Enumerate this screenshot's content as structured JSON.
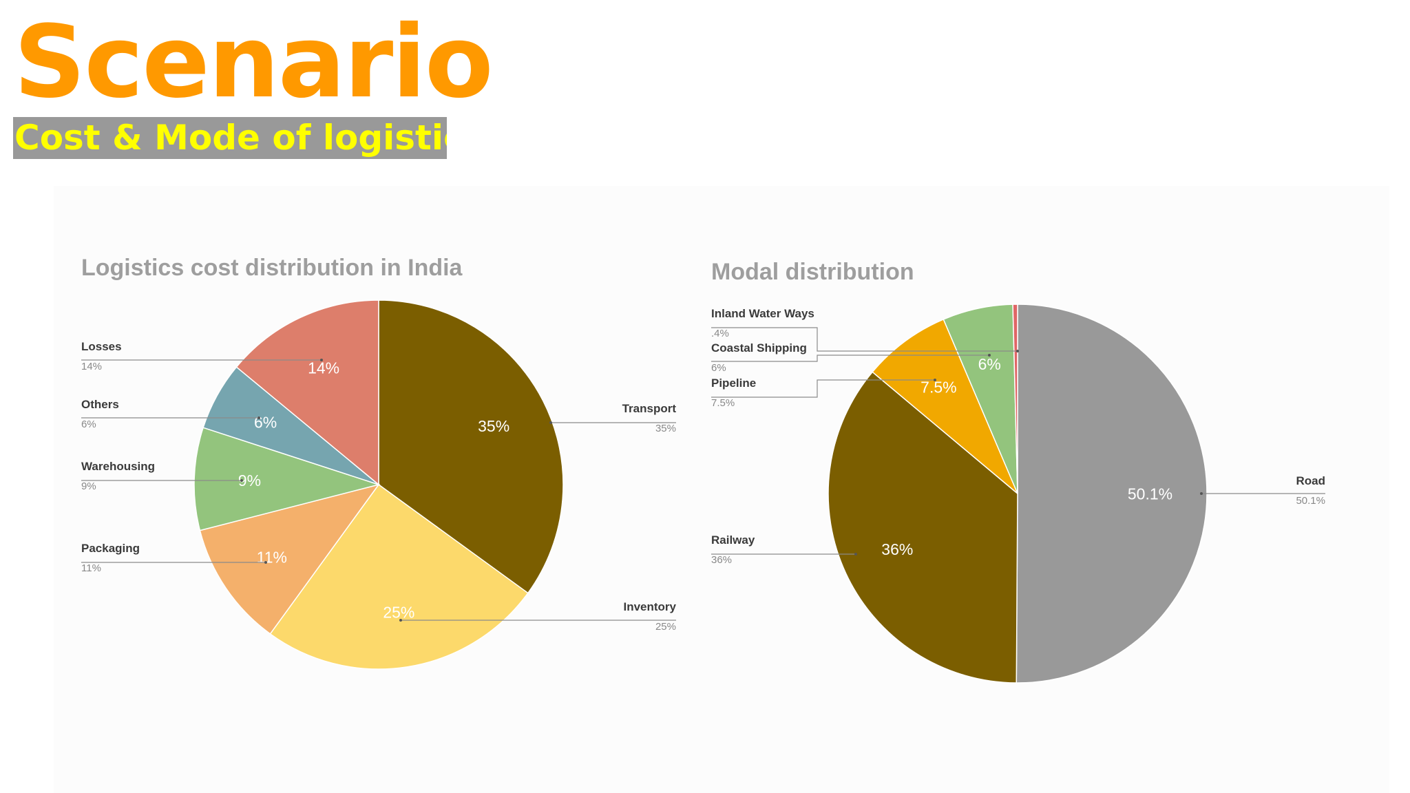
{
  "header": {
    "title": "Scenario",
    "subtitle": "Cost & Mode of logistics"
  },
  "colors": {
    "title": "#ff9900",
    "subtitle_text": "#ffff00",
    "subtitle_bg": "#999999"
  },
  "chart_data": [
    {
      "type": "pie",
      "title": "Logistics cost distribution in India",
      "start_angle_deg": 0,
      "slices": [
        {
          "label": "Transport",
          "value": 35,
          "display": "35%",
          "color": "#7b5e00"
        },
        {
          "label": "Inventory",
          "value": 25,
          "display": "25%",
          "color": "#fcd96b"
        },
        {
          "label": "Packaging",
          "value": 11,
          "display": "11%",
          "color": "#f4b06b"
        },
        {
          "label": "Warehousing",
          "value": 9,
          "display": "9%",
          "color": "#93c47d"
        },
        {
          "label": "Others",
          "value": 6,
          "display": "6%",
          "color": "#76a5af"
        },
        {
          "label": "Losses",
          "value": 14,
          "display": "14%",
          "color": "#dd7e6b"
        }
      ]
    },
    {
      "type": "pie",
      "title": "Modal distribution",
      "start_angle_deg": 0,
      "slices": [
        {
          "label": "Road",
          "value": 50.1,
          "display": "50.1%",
          "color": "#999999"
        },
        {
          "label": "Railway",
          "value": 36,
          "display": "36%",
          "color": "#7b5e00"
        },
        {
          "label": "Pipeline",
          "value": 7.5,
          "display": "7.5%",
          "color": "#f1a800"
        },
        {
          "label": "Coastal Shipping",
          "value": 6,
          "display": "6%",
          "color": "#93c47d"
        },
        {
          "label": "Inland Water Ways",
          "value": 0.4,
          "display": ".4%",
          "color": "#e06666"
        }
      ]
    }
  ]
}
